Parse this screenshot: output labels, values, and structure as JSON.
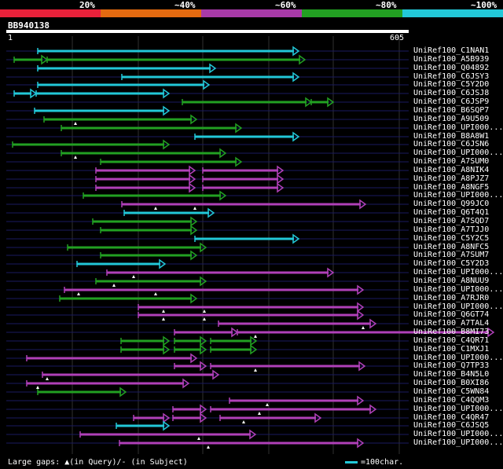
{
  "legend": {
    "segments": [
      {
        "label": "20%",
        "color": "#e8213a"
      },
      {
        "label": "~40%",
        "color": "#e46a10"
      },
      {
        "label": "~60%",
        "color": "#a83aa8"
      },
      {
        "label": "~80%",
        "color": "#22a022"
      },
      {
        "label": "~100%",
        "color": "#22c8d8"
      }
    ]
  },
  "query": {
    "name": "BB940138",
    "start": "1",
    "end": "605"
  },
  "hits": [
    {
      "label": "UniRef100_C1NAN1",
      "color": "cyan"
    },
    {
      "label": "UniRef100_A5B939",
      "color": "green"
    },
    {
      "label": "UniRef100_Q04892",
      "color": "cyan"
    },
    {
      "label": "UniRef100_C6JSY3",
      "color": "cyan"
    },
    {
      "label": "UniRef100_C5Y2D0",
      "color": "cyan"
    },
    {
      "label": "UniRef100_C6JSJ8",
      "color": "cyan"
    },
    {
      "label": "UniRef100_C6JSP9",
      "color": "green"
    },
    {
      "label": "UniRef100_B6SQP7",
      "color": "cyan"
    },
    {
      "label": "UniRef100_A9U509",
      "color": "green"
    },
    {
      "label": "UniRef100_UPI000...",
      "color": "green"
    },
    {
      "label": "UniRef100_B8A8W1",
      "color": "cyan"
    },
    {
      "label": "UniRef100_C6JSN6",
      "color": "green"
    },
    {
      "label": "UniRef100_UPI000...",
      "color": "green"
    },
    {
      "label": "UniRef100_A7SUM0",
      "color": "green"
    },
    {
      "label": "UniRef100_A8NIK4",
      "color": "magenta"
    },
    {
      "label": "UniRef100_A8PJZ7",
      "color": "magenta"
    },
    {
      "label": "UniRef100_A8NGF5",
      "color": "magenta"
    },
    {
      "label": "UniRef100_UPI000...",
      "color": "green"
    },
    {
      "label": "UniRef100_Q99JC0",
      "color": "magenta"
    },
    {
      "label": "UniRef100_Q6T4Q1",
      "color": "cyan"
    },
    {
      "label": "UniRef100_A7SQD7",
      "color": "green"
    },
    {
      "label": "UniRef100_A7TJJ0",
      "color": "green"
    },
    {
      "label": "UniRef100_C5Y2C5",
      "color": "cyan"
    },
    {
      "label": "UniRef100_A8NFC5",
      "color": "green"
    },
    {
      "label": "UniRef100_A7SUM7",
      "color": "green"
    },
    {
      "label": "UniRef100_C5Y2D3",
      "color": "cyan"
    },
    {
      "label": "UniRef100_UPI000...",
      "color": "magenta"
    },
    {
      "label": "UniRef100_A8NUU9",
      "color": "green"
    },
    {
      "label": "UniRef100_UPI000...",
      "color": "magenta"
    },
    {
      "label": "UniRef100_A7RJR0",
      "color": "green"
    },
    {
      "label": "UniRef100_UPI000...",
      "color": "magenta"
    },
    {
      "label": "UniRef100_Q6GT74",
      "color": "magenta"
    },
    {
      "label": "UniRef100_A7TAL4",
      "color": "magenta"
    },
    {
      "label": "UniRef100_B8MI73",
      "color": "magenta"
    },
    {
      "label": "UniRef100_C4QR71",
      "color": "green"
    },
    {
      "label": "UniRef100_C1MXJ1",
      "color": "green"
    },
    {
      "label": "UniRef100_UPI000...",
      "color": "magenta"
    },
    {
      "label": "UniRef100_Q7TP33",
      "color": "magenta"
    },
    {
      "label": "UniRef100_B4N5L0",
      "color": "magenta"
    },
    {
      "label": "UniRef100_B0XI86",
      "color": "magenta"
    },
    {
      "label": "UniRef100_C5WN84",
      "color": "green"
    },
    {
      "label": "UniRef100_C4QQM3",
      "color": "magenta"
    },
    {
      "label": "UniRef100_UPI000...",
      "color": "magenta"
    },
    {
      "label": "UniRef100_C4QR47",
      "color": "magenta"
    },
    {
      "label": "UniRef100_C6JSQ5",
      "color": "cyan"
    },
    {
      "label": "UniRef100_UPI000...",
      "color": "magenta"
    },
    {
      "label": "UniRef100_UPI000...",
      "color": "magenta"
    }
  ],
  "footer": {
    "gaps": "Large gaps: ▲(in Query)/- (in Subject)",
    "scale": "=100char."
  },
  "colors": {
    "cyan": "#22c8d8",
    "green": "#22a022",
    "magenta": "#b040b8"
  }
}
